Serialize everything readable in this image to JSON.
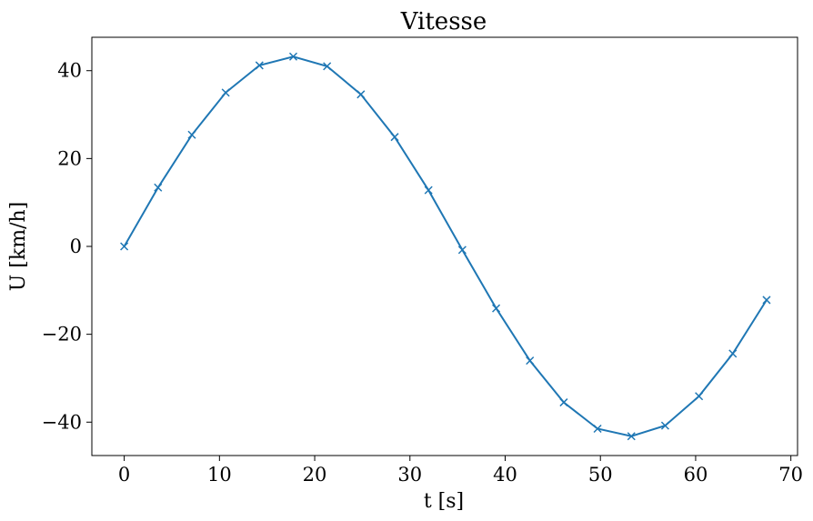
{
  "chart_data": {
    "type": "line",
    "title": "Vitesse",
    "xlabel": "t [s]",
    "ylabel": "U [km/h]",
    "xlim": [
      -3.4,
      70.7
    ],
    "ylim": [
      -47.6,
      47.6
    ],
    "xticks": [
      0,
      10,
      20,
      30,
      40,
      50,
      60,
      70
    ],
    "xtick_labels": [
      "0",
      "10",
      "20",
      "30",
      "40",
      "50",
      "60",
      "70"
    ],
    "yticks": [
      -40,
      -20,
      0,
      20,
      40
    ],
    "ytick_labels": [
      "−40",
      "−20",
      "0",
      "20",
      "40"
    ],
    "grid": false,
    "marker": "x",
    "color": "#1f77b4",
    "series": [
      {
        "x": [
          0,
          3.55,
          7.1,
          10.65,
          14.2,
          17.75,
          21.3,
          24.85,
          28.4,
          31.95,
          35.5,
          39.05,
          42.6,
          46.15,
          49.7,
          53.25,
          56.8,
          60.35,
          63.9,
          67.45
        ],
        "y": [
          0,
          13.4,
          25.4,
          35.0,
          41.2,
          43.2,
          41.0,
          34.6,
          24.9,
          12.8,
          -0.8,
          -14.1,
          -26.0,
          -35.5,
          -41.5,
          -43.2,
          -40.8,
          -34.1,
          -24.4,
          -12.2
        ]
      }
    ]
  }
}
